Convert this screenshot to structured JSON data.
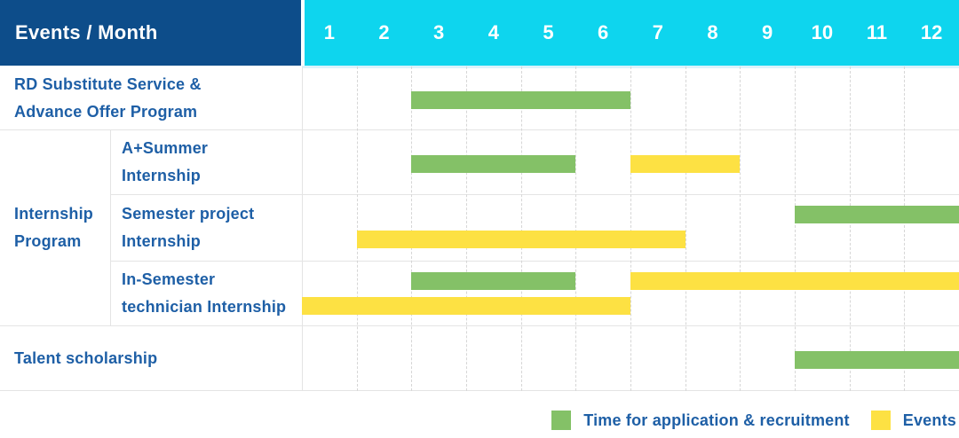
{
  "colors": {
    "navy": "#0d4d8a",
    "cyan": "#0ed5ee",
    "text_blue": "#1e5fa6",
    "green": "#84c167",
    "yellow": "#fde143"
  },
  "header": {
    "title": "Events / Month",
    "months": [
      "1",
      "2",
      "3",
      "4",
      "5",
      "6",
      "7",
      "8",
      "9",
      "10",
      "11",
      "12"
    ]
  },
  "row_labels": {
    "rd": [
      "RD Substitute Service &",
      "Advance Offer Program"
    ],
    "group": [
      "Internship",
      "Program"
    ],
    "sub1": [
      "A+Summer",
      "Internship"
    ],
    "sub2": [
      "Semester project",
      "Internship"
    ],
    "sub3": [
      "In-Semester",
      "technician Internship"
    ],
    "talent": [
      "Talent scholarship"
    ]
  },
  "legend": [
    {
      "label": "Time for application & recruitment",
      "color_key": "green"
    },
    {
      "label": "Events",
      "color_key": "yellow"
    }
  ],
  "chart_data": {
    "type": "bar",
    "variant": "gantt",
    "title": "Events / Month",
    "x": {
      "label": "Month",
      "ticks": [
        1,
        2,
        3,
        4,
        5,
        6,
        7,
        8,
        9,
        10,
        11,
        12
      ],
      "range": [
        1,
        12
      ]
    },
    "legend": [
      {
        "series": "Time for application & recruitment",
        "color": "#84c167"
      },
      {
        "series": "Events",
        "color": "#fde143"
      }
    ],
    "rows": [
      {
        "group": null,
        "label": "RD Substitute Service & Advance Offer Program",
        "bars": [
          {
            "series": "Time for application & recruitment",
            "color_key": "green",
            "start_month": 3,
            "end_month": 6,
            "lane": "center"
          }
        ]
      },
      {
        "group": "Internship Program",
        "label": "A+Summer Internship",
        "bars": [
          {
            "series": "Time for application & recruitment",
            "color_key": "green",
            "start_month": 3,
            "end_month": 5,
            "lane": "center"
          },
          {
            "series": "Events",
            "color_key": "yellow",
            "start_month": 7,
            "end_month": 8,
            "lane": "center"
          }
        ]
      },
      {
        "group": "Internship Program",
        "label": "Semester project Internship",
        "bars": [
          {
            "series": "Time for application & recruitment",
            "color_key": "green",
            "start_month": 10,
            "end_month": 12,
            "lane": "top"
          },
          {
            "series": "Events",
            "color_key": "yellow",
            "start_month": 2,
            "end_month": 7,
            "lane": "bottom"
          }
        ]
      },
      {
        "group": "Internship Program",
        "label": "In-Semester technician Internship",
        "bars": [
          {
            "series": "Time for application & recruitment",
            "color_key": "green",
            "start_month": 3,
            "end_month": 5,
            "lane": "top"
          },
          {
            "series": "Events",
            "color_key": "yellow",
            "start_month": 7,
            "end_month": 12,
            "lane": "top"
          },
          {
            "series": "Events",
            "color_key": "yellow",
            "start_month": 1,
            "end_month": 6,
            "lane": "bottom"
          }
        ]
      },
      {
        "group": null,
        "label": "Talent scholarship",
        "bars": [
          {
            "series": "Time for application & recruitment",
            "color_key": "green",
            "start_month": 10,
            "end_month": 12,
            "lane": "center"
          }
        ]
      }
    ]
  }
}
